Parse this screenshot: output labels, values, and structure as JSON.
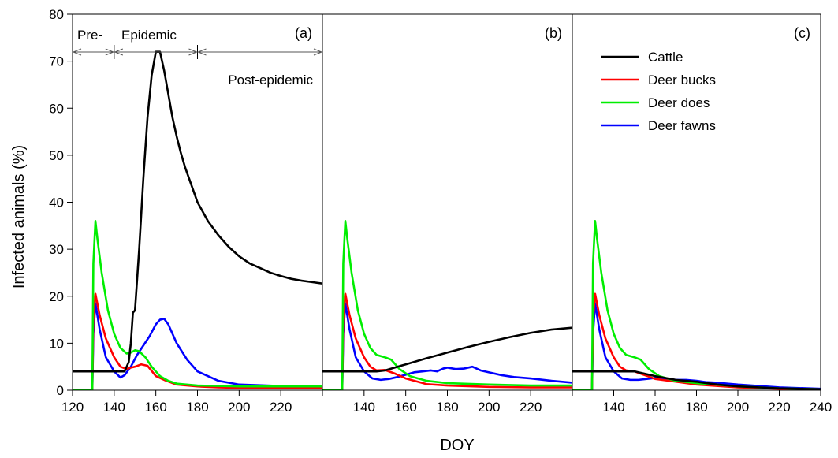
{
  "chart_data": {
    "type": "line",
    "xlabel": "DOY",
    "ylabel": "Infected animals (%)",
    "ylim": [
      0,
      80
    ],
    "yticks": [
      0,
      10,
      20,
      30,
      40,
      50,
      60,
      70,
      80
    ],
    "grid": false,
    "legend": {
      "placement": "top-right of panel (c)",
      "entries": [
        "Cattle",
        "Deer bucks",
        "Deer does",
        "Deer fawns"
      ]
    },
    "colors": {
      "Cattle": "#000000",
      "Deer bucks": "#ff0000",
      "Deer does": "#00ee00",
      "Deer fawns": "#0000ff"
    },
    "panels": [
      {
        "label": "(a)",
        "xlim": [
          120,
          240
        ],
        "xtick_values": [
          120,
          140,
          160,
          180,
          200,
          220
        ],
        "xtick_labels": [
          "120",
          "140",
          "160",
          "180",
          "200",
          "220"
        ],
        "annotations": {
          "phase_boundaries": [
            140,
            180
          ],
          "phase_labels": [
            "Pre-",
            "Epidemic",
            "Post-epidemic"
          ]
        },
        "series": [
          {
            "name": "Cattle",
            "x": [
              120,
              140,
              145,
              147,
              148,
              149,
              150,
              152,
              154,
              156,
              158,
              160,
              162,
              164,
              166,
              168,
              170,
              172,
              174,
              176,
              178,
              180,
              185,
              190,
              195,
              200,
              205,
              210,
              215,
              220,
              225,
              230,
              235,
              240
            ],
            "y": [
              4,
              4,
              4,
              6,
              10,
              16.5,
              17,
              30,
              45,
              58,
              67,
              72,
              72,
              68,
              63,
              58,
              54,
              50.5,
              47.5,
              45,
              42.5,
              40,
              36,
              33,
              30.5,
              28.5,
              27,
              26,
              25,
              24.3,
              23.7,
              23.3,
              23,
              22.7
            ]
          },
          {
            "name": "Deer bucks",
            "x": [
              120,
              129.5,
              130,
              131,
              133,
              136,
              140,
              143,
              146,
              148,
              150,
              153,
              156,
              160,
              165,
              170,
              180,
              190,
              200,
              220,
              240
            ],
            "y": [
              0,
              0,
              15,
              20.5,
              16,
              11,
              7,
              5,
              4.5,
              4.8,
              5,
              5.5,
              5.2,
              3,
              2,
              1.2,
              0.8,
              0.6,
              0.5,
              0.4,
              0.4
            ]
          },
          {
            "name": "Deer does",
            "x": [
              120,
              129.5,
              130,
              131,
              132,
              134,
              137,
              140,
              143,
              146,
              148,
              150,
              152,
              155,
              158,
              162,
              166,
              170,
              180,
              190,
              200,
              220,
              240
            ],
            "y": [
              0,
              0,
              27,
              36,
              32,
              25,
              17,
              12,
              9,
              7.8,
              8,
              8.5,
              8.3,
              7,
              5,
              3,
              2,
              1.4,
              1,
              0.9,
              0.8,
              0.8,
              0.8
            ]
          },
          {
            "name": "Deer fawns",
            "x": [
              120,
              129.5,
              130,
              131,
              133,
              136,
              140,
              143,
              145,
              148,
              151,
              154,
              157,
              160,
              162,
              164,
              166,
              170,
              175,
              180,
              190,
              200,
              220,
              240
            ],
            "y": [
              0,
              0,
              12,
              18.5,
              13,
              7,
              4,
              2.7,
              3.2,
              5,
              7.5,
              9.5,
              11.5,
              14,
              15,
              15.2,
              14,
              10,
              6.5,
              4,
              2,
              1.2,
              0.9,
              0.8
            ]
          }
        ]
      },
      {
        "label": "(b)",
        "xlim": [
          120,
          240
        ],
        "xtick_values": [
          140,
          160,
          180,
          200,
          220
        ],
        "xtick_labels": [
          "140",
          "160",
          "180",
          "200",
          "220"
        ],
        "series": [
          {
            "name": "Cattle",
            "x": [
              120,
              146,
              150,
              160,
              170,
              180,
              190,
              200,
              210,
              220,
              230,
              240
            ],
            "y": [
              4,
              4,
              4.2,
              5.5,
              6.8,
              8,
              9.2,
              10.3,
              11.3,
              12.2,
              12.9,
              13.3
            ]
          },
          {
            "name": "Deer bucks",
            "x": [
              120,
              129.5,
              130,
              131,
              133,
              136,
              140,
              143,
              146,
              150,
              155,
              160,
              170,
              180,
              200,
              220,
              240
            ],
            "y": [
              0,
              0,
              15,
              20.5,
              16,
              11,
              7,
              5,
              4.2,
              4.3,
              3.5,
              2.5,
              1.3,
              1,
              0.7,
              0.6,
              0.6
            ]
          },
          {
            "name": "Deer does",
            "x": [
              120,
              129.5,
              130,
              131,
              132,
              134,
              137,
              140,
              143,
              146,
              150,
              153,
              157,
              162,
              170,
              180,
              200,
              220,
              240
            ],
            "y": [
              0,
              0,
              27,
              36,
              32,
              25,
              17,
              12,
              9,
              7.5,
              7,
              6.5,
              4.5,
              3,
              2,
              1.5,
              1.2,
              1,
              1
            ]
          },
          {
            "name": "Deer fawns",
            "x": [
              120,
              129.5,
              130,
              131,
              133,
              136,
              140,
              144,
              148,
              152,
              156,
              160,
              164,
              168,
              172,
              175,
              178,
              180,
              184,
              188,
              192,
              196,
              200,
              206,
              212,
              220,
              230,
              240
            ],
            "y": [
              0,
              0,
              12,
              18.5,
              13,
              7,
              4,
              2.5,
              2.2,
              2.4,
              2.8,
              3.3,
              3.8,
              4,
              4.2,
              4,
              4.6,
              4.8,
              4.5,
              4.6,
              5,
              4.2,
              3.8,
              3.2,
              2.8,
              2.5,
              2,
              1.6
            ]
          }
        ]
      },
      {
        "label": "(c)",
        "xlim": [
          120,
          240
        ],
        "xtick_values": [
          140,
          160,
          180,
          200,
          220,
          240
        ],
        "xtick_labels": [
          "140",
          "160",
          "180",
          "200",
          "220",
          "240"
        ],
        "series": [
          {
            "name": "Cattle",
            "x": [
              120,
              150,
              155,
              160,
              170,
              180,
              190,
              200,
              220,
              240
            ],
            "y": [
              4,
              4,
              3.5,
              3,
              2.2,
              1.8,
              1.2,
              0.8,
              0.4,
              0.2
            ]
          },
          {
            "name": "Deer bucks",
            "x": [
              120,
              129.5,
              130,
              131,
              133,
              136,
              140,
              143,
              146,
              150,
              155,
              160,
              170,
              180,
              200,
              220,
              240
            ],
            "y": [
              0,
              0,
              15,
              20.5,
              16,
              11,
              7,
              5,
              4.2,
              4,
              3.2,
              2.4,
              1.8,
              1.2,
              0.6,
              0.3,
              0.2
            ]
          },
          {
            "name": "Deer does",
            "x": [
              120,
              129.5,
              130,
              131,
              132,
              134,
              137,
              140,
              143,
              146,
              150,
              153,
              157,
              162,
              170,
              180,
              200,
              220,
              240
            ],
            "y": [
              0,
              0,
              27,
              36,
              32,
              25,
              17,
              12,
              9,
              7.5,
              7,
              6.5,
              4.5,
              3,
              2,
              1.5,
              0.8,
              0.4,
              0.2
            ]
          },
          {
            "name": "Deer fawns",
            "x": [
              120,
              129.5,
              130,
              131,
              133,
              136,
              140,
              144,
              148,
              152,
              156,
              160,
              165,
              170,
              175,
              180,
              185,
              190,
              195,
              200,
              220,
              240
            ],
            "y": [
              0,
              0,
              12,
              18.5,
              13,
              7,
              4,
              2.5,
              2.2,
              2.2,
              2.4,
              2.6,
              2.5,
              2.2,
              2.2,
              2,
              1.7,
              1.6,
              1.4,
              1.2,
              0.6,
              0.3
            ]
          }
        ]
      }
    ]
  }
}
